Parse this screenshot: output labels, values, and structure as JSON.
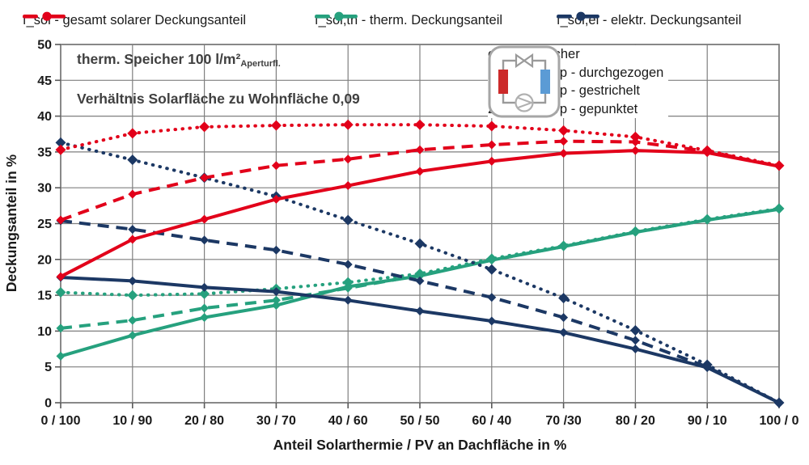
{
  "top_legend": {
    "items": [
      {
        "label": "f_sol - gesamt solarer Deckungsanteil",
        "color": "#e2001a"
      },
      {
        "label": "f_sol,th - therm. Deckungsanteil",
        "color": "#26a17e"
      },
      {
        "label": "f_sol,el - elektr. Deckungsanteil",
        "color": "#1c3864"
      }
    ]
  },
  "annotations": {
    "line1_main": "therm. Speicher 100 l/m²",
    "line1_sub": "Aperturfl.",
    "line2": "Verhältnis Solarfläche zu Wohnfläche 0,09"
  },
  "storage_legend": {
    "icon": "heat-pump-loop-icon",
    "title": "elektr. Speicher",
    "items": [
      "0,0 kWh/kWp - durchgezogen",
      "0,5 kWh/kWp - gestrichelt",
      "2,0 kWh/kWp - gepunktet"
    ]
  },
  "colors": {
    "red": "#e2001a",
    "green": "#26a17e",
    "navy": "#1c3864",
    "grid": "#7f7f7f",
    "icon_red": "#cc2a2a",
    "icon_blue": "#5b9bd5",
    "icon_gray": "#9a9a9a"
  },
  "chart_data": {
    "type": "line",
    "title": "",
    "xlabel": "Anteil Solarthermie / PV an Dachfläche in %",
    "ylabel": "Deckungsanteil in %",
    "ylim": [
      0,
      50
    ],
    "yticks": [
      0,
      5,
      10,
      15,
      20,
      25,
      30,
      35,
      40,
      45,
      50
    ],
    "grid": true,
    "legend_position": "top",
    "categories": [
      "0 / 100",
      "10 / 90",
      "20 / 80",
      "30 / 70",
      "40 / 60",
      "50 / 50",
      "60 / 40",
      "70 /30",
      "80 / 20",
      "90 / 10",
      "100 / 0"
    ],
    "series": [
      {
        "name": "f_sol,th - therm. Deckungsanteil, elektr. Speicher 2,0 kWh/kWp",
        "group": "f_sol,th",
        "storage": "2,0 kWh/kWp",
        "style": "dotted",
        "color": "#26a17e",
        "values": [
          15.4,
          15.0,
          15.2,
          15.9,
          16.8,
          18.0,
          20.1,
          21.9,
          23.9,
          25.6,
          27.1
        ]
      },
      {
        "name": "f_sol,th - therm. Deckungsanteil, elektr. Speicher 0,5 kWh/kWp",
        "group": "f_sol,th",
        "storage": "0,5 kWh/kWp",
        "style": "dashed",
        "color": "#26a17e",
        "values": [
          10.4,
          11.5,
          13.2,
          14.3,
          16.0,
          17.8,
          19.9,
          21.8,
          23.8,
          25.5,
          27.0
        ]
      },
      {
        "name": "f_sol,th - therm. Deckungsanteil, elektr. Speicher 0,0 kWh/kWp",
        "group": "f_sol,th",
        "storage": "0,0 kWh/kWp",
        "style": "solid",
        "color": "#26a17e",
        "values": [
          6.5,
          9.4,
          11.9,
          13.6,
          16.2,
          17.7,
          19.9,
          21.8,
          23.8,
          25.5,
          27.0
        ]
      },
      {
        "name": "f_sol,el - elektr. Deckungsanteil, elektr. Speicher 2,0 kWh/kWp",
        "group": "f_sol,el",
        "storage": "2,0 kWh/kWp",
        "style": "dotted",
        "color": "#1c3864",
        "values": [
          36.3,
          33.9,
          31.4,
          28.8,
          25.5,
          22.2,
          18.6,
          14.6,
          10.1,
          5.3,
          0.0
        ]
      },
      {
        "name": "f_sol,el - elektr. Deckungsanteil, elektr. Speicher 0,5 kWh/kWp",
        "group": "f_sol,el",
        "storage": "0,5 kWh/kWp",
        "style": "dashed",
        "color": "#1c3864",
        "values": [
          25.4,
          24.2,
          22.7,
          21.3,
          19.3,
          17.0,
          14.7,
          11.9,
          8.7,
          5.0,
          0.0
        ]
      },
      {
        "name": "f_sol,el - elektr. Deckungsanteil, elektr. Speicher 0,0 kWh/kWp",
        "group": "f_sol,el",
        "storage": "0,0 kWh/kWp",
        "style": "solid",
        "color": "#1c3864",
        "values": [
          17.5,
          17.0,
          16.1,
          15.5,
          14.3,
          12.8,
          11.4,
          9.8,
          7.5,
          4.9,
          0.0
        ]
      },
      {
        "name": "f_sol - gesamt solarer Deckungsanteil, elektr. Speicher 2,0 kWh/kWp",
        "group": "f_sol",
        "storage": "2,0 kWh/kWp",
        "style": "dotted",
        "color": "#e2001a",
        "values": [
          35.3,
          37.6,
          38.5,
          38.7,
          38.8,
          38.8,
          38.6,
          38.0,
          37.1,
          35.2,
          33.1
        ]
      },
      {
        "name": "f_sol - gesamt solarer Deckungsanteil, elektr. Speicher 0,5 kWh/kWp",
        "group": "f_sol",
        "storage": "0,5 kWh/kWp",
        "style": "dashed",
        "color": "#e2001a",
        "values": [
          25.5,
          29.1,
          31.4,
          33.1,
          34.0,
          35.3,
          36.0,
          36.5,
          36.4,
          35.1,
          33.0
        ]
      },
      {
        "name": "f_sol - gesamt solarer Deckungsanteil, elektr. Speicher 0,0 kWh/kWp",
        "group": "f_sol",
        "storage": "0,0 kWh/kWp",
        "style": "solid",
        "color": "#e2001a",
        "values": [
          17.6,
          22.8,
          25.6,
          28.4,
          30.3,
          32.3,
          33.7,
          34.8,
          35.2,
          34.9,
          33.0
        ]
      }
    ]
  }
}
